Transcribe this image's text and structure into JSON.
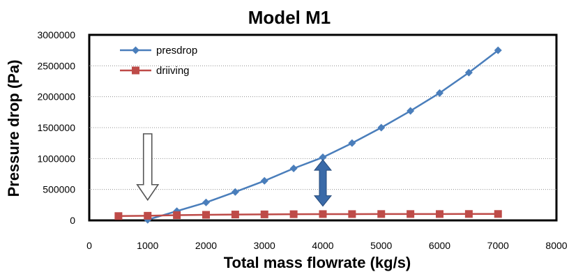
{
  "chart_data": {
    "type": "line",
    "title": "Model M1",
    "xlabel": "Total mass flowrate (kg/s)",
    "ylabel": "Pressure drop (Pa)",
    "xlim": [
      0,
      8000
    ],
    "ylim": [
      0,
      3000000
    ],
    "x_ticks": [
      "0",
      "1000",
      "2000",
      "3000",
      "4000",
      "5000",
      "6000",
      "7000",
      "8000"
    ],
    "y_ticks": [
      "0",
      "500000",
      "1000000",
      "1500000",
      "2000000",
      "2500000",
      "3000000"
    ],
    "grid": "horizontal dotted",
    "legend_position": "top-left",
    "series": [
      {
        "name": "presdrop",
        "color": "#4a7ebb",
        "marker": "diamond",
        "x": [
          1000,
          1500,
          2000,
          2500,
          3000,
          3500,
          4000,
          4500,
          5000,
          5500,
          6000,
          6500,
          7000
        ],
        "values": [
          10000,
          150000,
          290000,
          460000,
          640000,
          840000,
          1020000,
          1250000,
          1500000,
          1770000,
          2060000,
          2390000,
          2750000
        ]
      },
      {
        "name": "driiving",
        "color": "#be4b48",
        "marker": "square",
        "x": [
          500,
          1000,
          1500,
          2000,
          2500,
          3000,
          3500,
          4000,
          4500,
          5000,
          5500,
          6000,
          6500,
          7000
        ],
        "values": [
          70000,
          75000,
          85000,
          90000,
          95000,
          97000,
          100000,
          102000,
          102000,
          103000,
          103000,
          103000,
          104000,
          104000
        ]
      }
    ],
    "annotations": [
      {
        "kind": "hollow-down-arrow",
        "x": 1000,
        "y_top": 1400000,
        "y_bottom": 330000
      },
      {
        "kind": "double-headed-arrow",
        "color": "#3a6aa8",
        "x": 4000,
        "y_top": 980000,
        "y_bottom": 230000
      }
    ]
  }
}
